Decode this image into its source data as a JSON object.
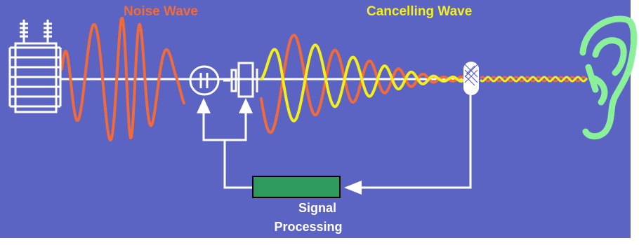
{
  "labels": {
    "noise_wave": "Noise Wave",
    "cancelling_wave": "Cancelling Wave",
    "signal_processing_line1": "Signal",
    "signal_processing_line2": "Processing"
  },
  "colors": {
    "background": "#5b64c2",
    "noise_wave": "#f06a3a",
    "cancelling_wave": "#f3ef1a",
    "processor_box": "#2f9a5e",
    "ear": "#8af09a",
    "lines": "#ffffff"
  },
  "icons": {
    "noise_source": "transformer-icon",
    "mixer": "mixer-icon",
    "speaker": "speaker-icon",
    "microphone": "microphone-icon",
    "listener": "ear-icon"
  }
}
